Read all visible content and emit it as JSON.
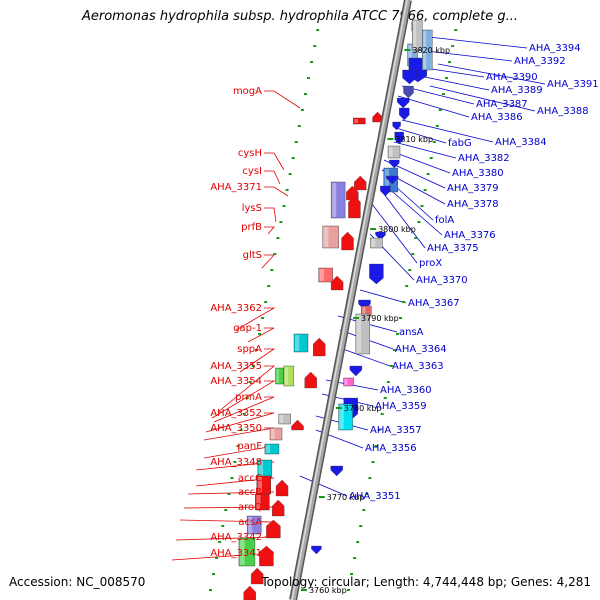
{
  "title": "Aeromonas hydrophila subsp. hydrophila ATCC 7966, complete g...",
  "footer": {
    "accession": "Accession: NC_008570",
    "topology": "Topology: circular; Length: 4,744,448 bp; Genes: 4,281"
  },
  "colors": {
    "forward_label": "#e00000",
    "reverse_label": "#0000cc",
    "backbone": "#8c8c8c",
    "tick": "#1a9a1a"
  },
  "axis": {
    "kbp_marks": [
      "3820 kbp",
      "3810 kbp",
      "3800 kbp",
      "3790 kbp",
      "3780 kbp",
      "3770 kbp",
      "3760 kbp"
    ]
  },
  "left_labels": [
    "mogA",
    "cysH",
    "cysI",
    "AHA_3371",
    "lysS",
    "prfB",
    "gltS",
    "AHA_3362",
    "gap-1",
    "sppA",
    "AHA_3355",
    "AHA_3354",
    "prmA",
    "AHA_3352",
    "AHA_3350",
    "panF",
    "AHA_3348",
    "accC",
    "accB",
    "aroQ",
    "acsA",
    "AHA_3342",
    "AHA_3341"
  ],
  "right_labels": [
    "AHA_3394",
    "AHA_3392",
    "AHA_3391",
    "AHA_3390",
    "AHA_3389",
    "AHA_3388",
    "AHA_3387",
    "AHA_3386",
    "AHA_3384",
    "fabG",
    "AHA_3382",
    "AHA_3380",
    "AHA_3379",
    "AHA_3378",
    "folA",
    "AHA_3376",
    "AHA_3375",
    "proX",
    "AHA_3370",
    "AHA_3367",
    "ansA",
    "AHA_3364",
    "AHA_3363",
    "AHA_3360",
    "AHA_3359",
    "AHA_3357",
    "AHA_3356",
    "AHA_3351"
  ],
  "feature_colors": {
    "forward": [
      "#ee1111",
      "#ff6a6a",
      "#00c8d0",
      "#49d049",
      "#b0e060",
      "#8a80e0",
      "#e9a0a0",
      "#c0c0c0"
    ],
    "reverse": [
      "#1a1ae6",
      "#3a7ad0",
      "#4a4ab0",
      "#7fb0e0",
      "#c0c0c0",
      "#00e0f0",
      "#ff66cc",
      "#e06a6a"
    ]
  }
}
